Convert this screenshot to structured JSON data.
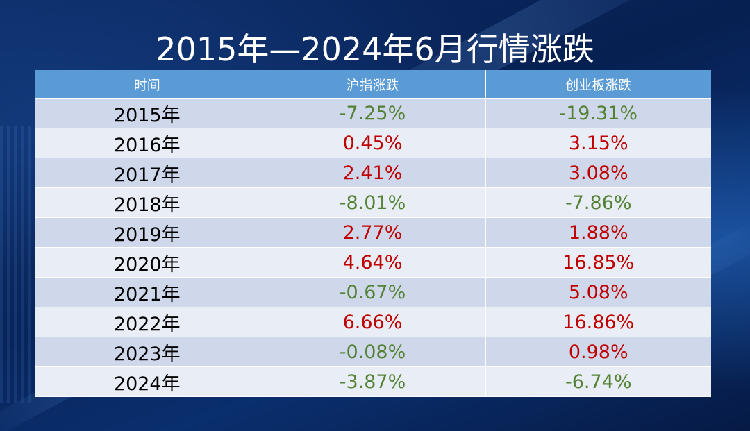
{
  "title": "2015年—2024年6月行情涨跌",
  "colors": {
    "header_bg": "#5b9bd5",
    "row_odd": "#cfd8eb",
    "row_even": "#e9edf6",
    "up": "#c00000",
    "down": "#548235"
  },
  "chart_data": {
    "type": "table",
    "title": "2015年—2024年6月行情涨跌",
    "columns": [
      "时间",
      "沪指涨跌",
      "创业板涨跌"
    ],
    "rows": [
      {
        "year": "2015年",
        "shanghai": "-7.25%",
        "chinext": "-19.31%"
      },
      {
        "year": "2016年",
        "shanghai": "0.45%",
        "chinext": "3.15%"
      },
      {
        "year": "2017年",
        "shanghai": "2.41%",
        "chinext": "3.08%"
      },
      {
        "year": "2018年",
        "shanghai": "-8.01%",
        "chinext": "-7.86%"
      },
      {
        "year": "2019年",
        "shanghai": "2.77%",
        "chinext": "1.88%"
      },
      {
        "year": "2020年",
        "shanghai": "4.64%",
        "chinext": "16.85%"
      },
      {
        "year": "2021年",
        "shanghai": "-0.67%",
        "chinext": "5.08%"
      },
      {
        "year": "2022年",
        "shanghai": "6.66%",
        "chinext": "16.86%"
      },
      {
        "year": "2023年",
        "shanghai": "-0.08%",
        "chinext": "0.98%"
      },
      {
        "year": "2024年",
        "shanghai": "-3.87%",
        "chinext": "-6.74%"
      }
    ]
  }
}
